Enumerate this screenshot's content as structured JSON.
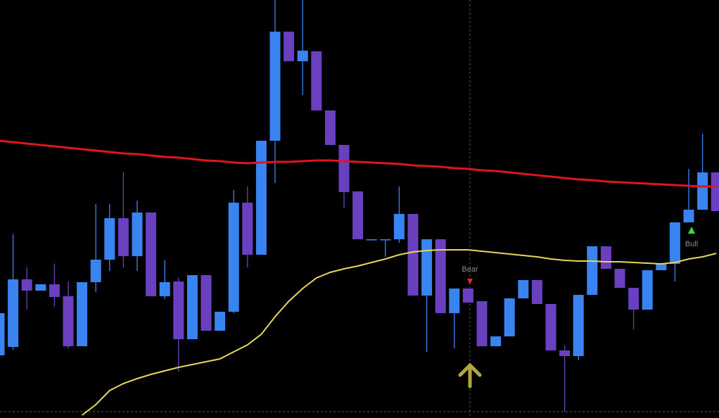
{
  "chart_data": {
    "type": "candlestick",
    "ylim": [
      0,
      594
    ],
    "bull_color": "#3a84f2",
    "bear_color": "#6a40c0",
    "open": [
      89,
      101,
      197,
      181,
      190,
      173,
      102,
      193,
      225,
      284,
      230,
      292,
      173,
      194,
      112,
      203,
      124,
      151,
      306,
      232,
      394,
      549,
      507,
      521,
      437,
      388,
      322,
      254,
      254,
      254,
      290,
      174,
      254,
      149,
      184,
      166,
      102,
      116,
      170,
      196,
      162,
      96,
      88,
      175,
      244,
      212,
      185,
      154,
      210,
      219,
      278,
      296,
      349
    ],
    "high": [
      154,
      261,
      214,
      190,
      219,
      194,
      193,
      304,
      304,
      349,
      309,
      292,
      224,
      199,
      203,
      203,
      151,
      324,
      329,
      394,
      594,
      549,
      594,
      521,
      437,
      388,
      322,
      254,
      254,
      329,
      290,
      254,
      254,
      184,
      184,
      166,
      116,
      170,
      196,
      196,
      162,
      104,
      175,
      244,
      244,
      212,
      185,
      210,
      219,
      278,
      354,
      404,
      349
    ],
    "low": [
      84,
      97,
      154,
      181,
      159,
      99,
      102,
      179,
      209,
      214,
      209,
      173,
      169,
      66,
      112,
      124,
      124,
      149,
      214,
      232,
      334,
      507,
      459,
      437,
      388,
      298,
      254,
      254,
      229,
      249,
      174,
      94,
      149,
      99,
      164,
      102,
      102,
      116,
      170,
      162,
      96,
      9,
      82,
      175,
      212,
      185,
      126,
      154,
      210,
      194,
      278,
      296,
      294
    ],
    "close": [
      149,
      197,
      181,
      190,
      172,
      102,
      193,
      225,
      284,
      230,
      292,
      173,
      193,
      112,
      203,
      124,
      151,
      306,
      232,
      394,
      549,
      507,
      522,
      437,
      388,
      321,
      254,
      254,
      254,
      290,
      174,
      254,
      149,
      184,
      164,
      102,
      116,
      170,
      196,
      162,
      96,
      88,
      175,
      244,
      212,
      185,
      154,
      210,
      219,
      278,
      296,
      349,
      294
    ],
    "lines": [
      {
        "color": "#e0141e",
        "values": [
          394,
          392,
          390,
          388,
          386,
          384,
          382,
          380,
          378,
          376,
          375,
          373,
          371,
          370,
          368,
          366,
          365,
          363,
          362,
          363,
          364,
          364,
          365,
          366,
          366,
          365,
          364,
          363,
          362,
          361,
          359,
          358,
          357,
          355,
          354,
          352,
          351,
          349,
          347,
          345,
          343,
          341,
          339,
          338,
          336,
          335,
          334,
          333,
          332,
          331,
          330,
          329,
          329
        ]
      },
      {
        "color": "#e6d75a",
        "values": [
          null,
          null,
          null,
          null,
          null,
          null,
          4,
          19,
          39,
          49,
          56,
          62,
          67,
          72,
          76,
          80,
          84,
          94,
          104,
          119,
          144,
          166,
          184,
          199,
          207,
          212,
          216,
          221,
          226,
          232,
          236,
          238,
          239,
          239,
          239,
          237,
          235,
          233,
          231,
          229,
          226,
          224,
          223,
          223,
          222,
          222,
          221,
          220,
          219,
          221,
          226,
          229,
          234
        ]
      }
    ],
    "annotations": [
      {
        "text": "Bear",
        "color": "#ff2020"
      },
      {
        "text": "Bull",
        "color": "#33dd33"
      }
    ]
  }
}
